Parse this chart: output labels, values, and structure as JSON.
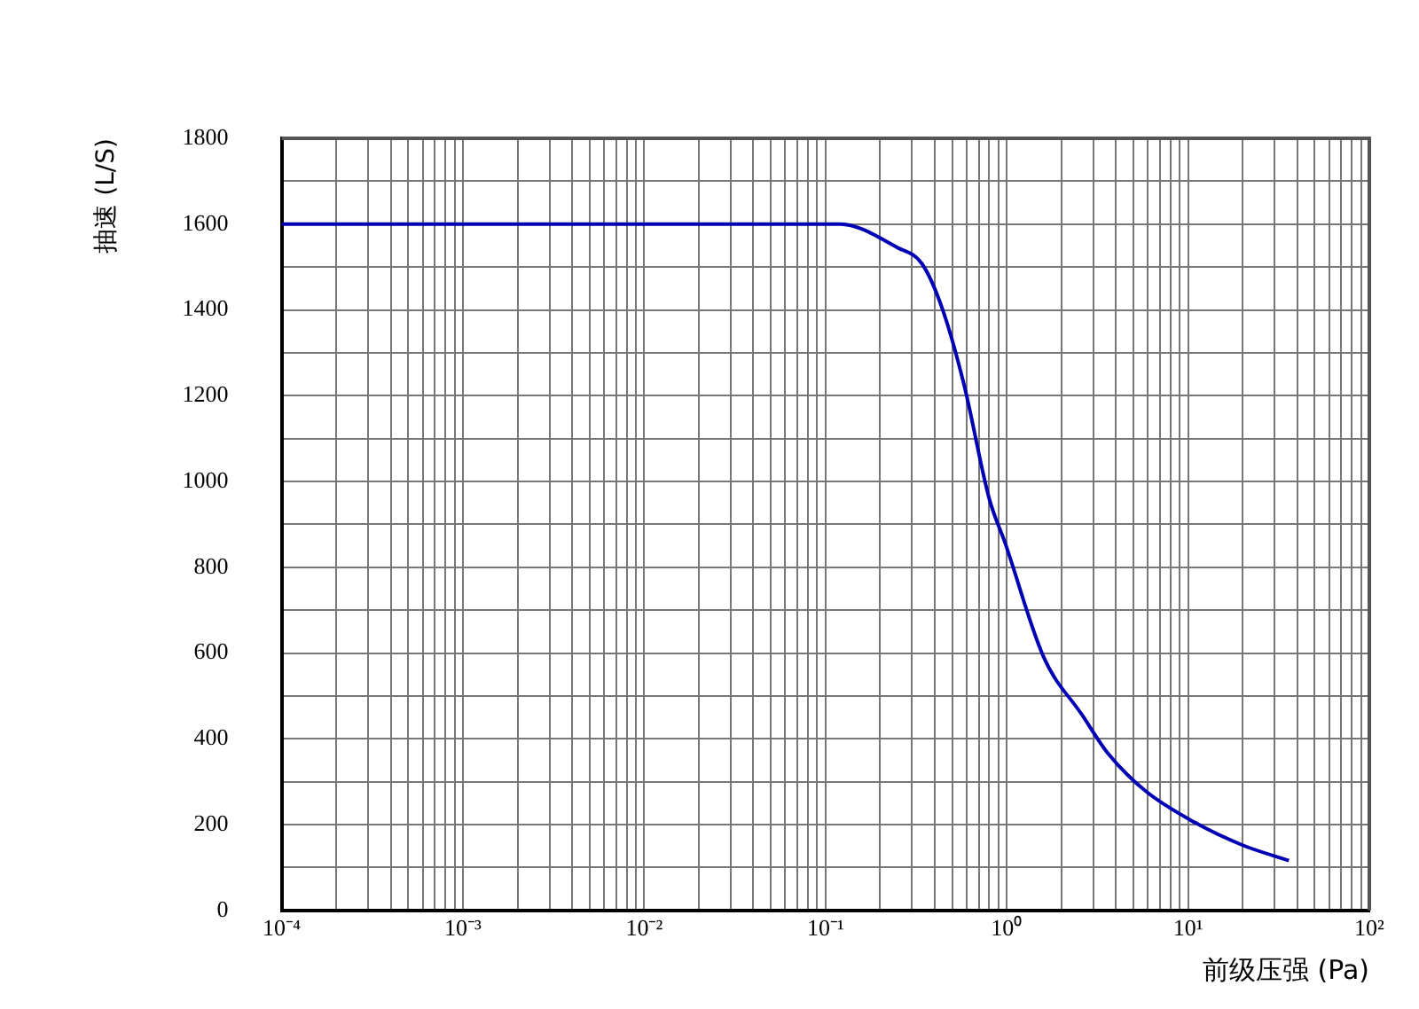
{
  "chart_data": {
    "type": "line",
    "xlabel": "前级压强 (Pa)",
    "ylabel": "抽速 (L/S)",
    "x": [
      0.0001,
      0.12,
      0.25,
      0.34,
      0.44,
      0.58,
      0.8,
      0.98,
      1.6,
      2.6,
      3.6,
      5.8,
      11,
      20,
      36
    ],
    "series": [
      {
        "color": "#0000b4",
        "values": [
          1600,
          1600,
          1545,
          1508,
          1404,
          1227,
          960,
          856,
          590,
          456,
          367,
          279,
          204,
          152,
          116
        ]
      }
    ],
    "log": "x",
    "xlim": [
      0.0001,
      100
    ],
    "ylim": [
      0,
      1800
    ],
    "xticks": [
      {
        "value": 0.0001,
        "label": "10⁻⁴"
      },
      {
        "value": 0.0002,
        "label": null
      },
      {
        "value": 0.0003,
        "label": null
      },
      {
        "value": 0.0004,
        "label": null
      },
      {
        "value": 0.0005,
        "label": null
      },
      {
        "value": 0.0006,
        "label": null
      },
      {
        "value": 0.0007,
        "label": null
      },
      {
        "value": 0.0008,
        "label": null
      },
      {
        "value": 0.0009,
        "label": null
      },
      {
        "value": 0.001,
        "label": "10⁻³"
      },
      {
        "value": 0.002,
        "label": null
      },
      {
        "value": 0.003,
        "label": null
      },
      {
        "value": 0.004,
        "label": null
      },
      {
        "value": 0.005,
        "label": null
      },
      {
        "value": 0.006,
        "label": null
      },
      {
        "value": 0.007,
        "label": null
      },
      {
        "value": 0.008,
        "label": null
      },
      {
        "value": 0.009,
        "label": null
      },
      {
        "value": 0.01,
        "label": "10⁻²"
      },
      {
        "value": 0.02,
        "label": null
      },
      {
        "value": 0.03,
        "label": null
      },
      {
        "value": 0.04,
        "label": null
      },
      {
        "value": 0.05,
        "label": null
      },
      {
        "value": 0.06,
        "label": null
      },
      {
        "value": 0.07,
        "label": null
      },
      {
        "value": 0.08,
        "label": null
      },
      {
        "value": 0.09,
        "label": null
      },
      {
        "value": 0.1,
        "label": "10⁻¹"
      },
      {
        "value": 0.2,
        "label": null
      },
      {
        "value": 0.3,
        "label": null
      },
      {
        "value": 0.4,
        "label": null
      },
      {
        "value": 0.5,
        "label": null
      },
      {
        "value": 0.6,
        "label": null
      },
      {
        "value": 0.7,
        "label": null
      },
      {
        "value": 0.8,
        "label": null
      },
      {
        "value": 0.9,
        "label": null
      },
      {
        "value": 1,
        "label": "10⁰"
      },
      {
        "value": 2,
        "label": null
      },
      {
        "value": 3,
        "label": null
      },
      {
        "value": 4,
        "label": null
      },
      {
        "value": 5,
        "label": null
      },
      {
        "value": 6,
        "label": null
      },
      {
        "value": 7,
        "label": null
      },
      {
        "value": 8,
        "label": null
      },
      {
        "value": 9,
        "label": null
      },
      {
        "value": 10,
        "label": "10¹"
      },
      {
        "value": 20,
        "label": null
      },
      {
        "value": 30,
        "label": null
      },
      {
        "value": 40,
        "label": null
      },
      {
        "value": 50,
        "label": null
      },
      {
        "value": 60,
        "label": null
      },
      {
        "value": 70,
        "label": null
      },
      {
        "value": 80,
        "label": null
      },
      {
        "value": 90,
        "label": null
      },
      {
        "value": 100,
        "label": "10²"
      }
    ],
    "yticks": [
      0,
      {
        "value": 100,
        "label": null
      },
      200,
      {
        "value": 300,
        "label": null
      },
      400,
      {
        "value": 500,
        "label": null
      },
      600,
      {
        "value": 700,
        "label": null
      },
      800,
      {
        "value": 900,
        "label": null
      },
      1000,
      {
        "value": 1100,
        "label": null
      },
      1200,
      {
        "value": 1300,
        "label": null
      },
      1400,
      {
        "value": 1500,
        "label": null
      },
      1600,
      {
        "value": 1700,
        "label": null
      },
      1800
    ],
    "grid": true,
    "legend": false,
    "marker": "none",
    "line_style": "solid"
  }
}
